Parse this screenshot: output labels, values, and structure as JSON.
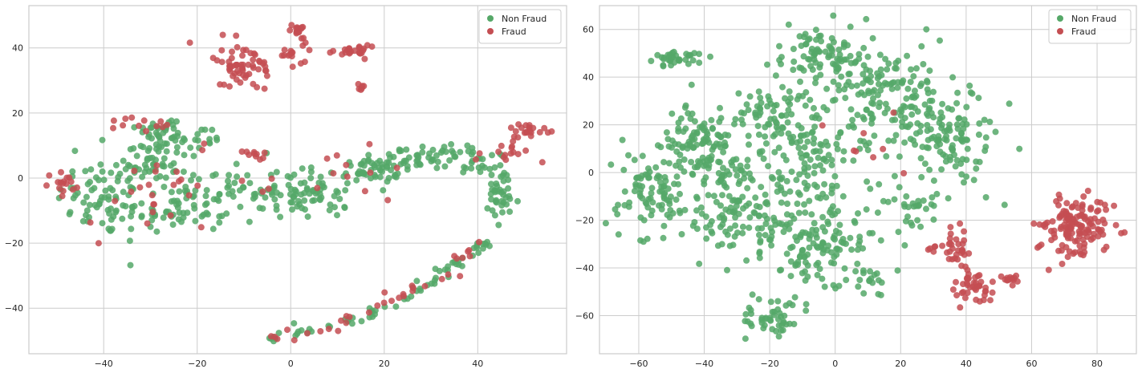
{
  "chart_data": [
    {
      "type": "scatter",
      "xlim": [
        -56,
        59
      ],
      "ylim": [
        -54,
        53
      ],
      "xticks": [
        -40,
        -20,
        0,
        20,
        40
      ],
      "yticks": [
        -40,
        -20,
        0,
        20,
        40
      ],
      "xtick_labels": [
        "−40",
        "−20",
        "0",
        "20",
        "40"
      ],
      "ytick_labels": [
        "−40",
        "−20",
        "0",
        "20",
        "40"
      ],
      "grid": true,
      "legend": "top-right",
      "series": [
        {
          "name": "Non Fraud",
          "color": "#55a868",
          "clusters": [
            {
              "cx": -40,
              "cy": -6,
              "sx": 5,
              "sy": 6,
              "n": 70
            },
            {
              "cx": -30,
              "cy": 6,
              "sx": 4,
              "sy": 5,
              "n": 60
            },
            {
              "cx": -27,
              "cy": 15,
              "sx": 3,
              "sy": 2,
              "n": 25
            },
            {
              "cx": -20,
              "cy": 12,
              "sx": 3,
              "sy": 2,
              "n": 18
            },
            {
              "cx": -25,
              "cy": -10,
              "sx": 6,
              "sy": 4,
              "n": 60
            },
            {
              "cx": -12,
              "cy": -4,
              "sx": 5,
              "sy": 5,
              "n": 50
            },
            {
              "cx": 0,
              "cy": -5,
              "sx": 3,
              "sy": 3,
              "n": 30
            },
            {
              "cx": 7,
              "cy": -4,
              "sx": 3,
              "sy": 4,
              "n": 40
            },
            {
              "cx": 17,
              "cy": 2,
              "sx": 3,
              "sy": 2,
              "n": 40
            },
            {
              "cx": 27,
              "cy": 6,
              "sx": 5,
              "sy": 2,
              "n": 50
            },
            {
              "cx": 40,
              "cy": 5,
              "sx": 3,
              "sy": 2,
              "n": 25
            },
            {
              "cx": 45,
              "cy": -6,
              "sx": 2,
              "sy": 5,
              "n": 40
            }
          ],
          "arc": {
            "points": [
              [
                -5,
                -49
              ],
              [
                8,
                -46
              ],
              [
                20,
                -40
              ],
              [
                30,
                -32
              ],
              [
                38,
                -24
              ],
              [
                42,
                -20
              ]
            ],
            "n": 70,
            "spread": 0.9
          }
        },
        {
          "name": "Fraud",
          "color": "#c44e52",
          "clusters": [
            {
              "cx": -10,
              "cy": 35,
              "sx": 3,
              "sy": 3,
              "n": 60
            },
            {
              "cx": 0,
              "cy": 38,
              "sx": 2,
              "sy": 2,
              "n": 15
            },
            {
              "cx": 1,
              "cy": 45,
              "sx": 1,
              "sy": 1,
              "n": 14
            },
            {
              "cx": 13,
              "cy": 39,
              "sx": 3,
              "sy": 1,
              "n": 24
            },
            {
              "cx": 15,
              "cy": 28,
              "sx": 0.6,
              "sy": 0.8,
              "n": 6
            },
            {
              "cx": -8,
              "cy": 7,
              "sx": 1.5,
              "sy": 1.5,
              "n": 10
            },
            {
              "cx": -33,
              "cy": 17,
              "sx": 3,
              "sy": 2,
              "n": 12
            },
            {
              "cx": -48,
              "cy": -2,
              "sx": 2,
              "sy": 2,
              "n": 16
            },
            {
              "cx": 51,
              "cy": 15,
              "sx": 2,
              "sy": 1,
              "n": 20
            },
            {
              "cx": 47,
              "cy": 8,
              "sx": 3,
              "sy": 2,
              "n": 16
            },
            {
              "cx": -30,
              "cy": -5,
              "sx": 8,
              "sy": 7,
              "n": 25
            },
            {
              "cx": 5,
              "cy": 0,
              "sx": 10,
              "sy": 6,
              "n": 14
            }
          ],
          "arc": {
            "points": [
              [
                -3,
                -49
              ],
              [
                8,
                -46
              ],
              [
                20,
                -38
              ],
              [
                32,
                -30
              ],
              [
                40,
                -20
              ]
            ],
            "n": 35,
            "spread": 1.1
          }
        }
      ]
    },
    {
      "type": "scatter",
      "xlim": [
        -72,
        92
      ],
      "ylim": [
        -76,
        70
      ],
      "xticks": [
        -60,
        -40,
        -20,
        0,
        20,
        40,
        60,
        80
      ],
      "yticks": [
        -60,
        -40,
        -20,
        0,
        20,
        40,
        60
      ],
      "xtick_labels": [
        "−60",
        "−40",
        "−20",
        "0",
        "20",
        "40",
        "60",
        "80"
      ],
      "ytick_labels": [
        "−60",
        "−40",
        "−20",
        "0",
        "20",
        "40",
        "60"
      ],
      "grid": true,
      "legend": "top-right",
      "series": [
        {
          "name": "Non Fraud",
          "color": "#55a868",
          "clusters": [
            {
              "cx": -48,
              "cy": 48,
              "sx": 4,
              "sy": 2,
              "n": 35
            },
            {
              "cx": -55,
              "cy": -8,
              "sx": 7,
              "sy": 10,
              "n": 100
            },
            {
              "cx": -40,
              "cy": 12,
              "sx": 6,
              "sy": 8,
              "n": 110
            },
            {
              "cx": -30,
              "cy": -15,
              "sx": 8,
              "sy": 12,
              "n": 120
            },
            {
              "cx": -18,
              "cy": 25,
              "sx": 6,
              "sy": 6,
              "n": 60
            },
            {
              "cx": -5,
              "cy": 50,
              "sx": 8,
              "sy": 6,
              "n": 90
            },
            {
              "cx": 15,
              "cy": 30,
              "sx": 10,
              "sy": 10,
              "n": 150
            },
            {
              "cx": 35,
              "cy": 15,
              "sx": 8,
              "sy": 12,
              "n": 110
            },
            {
              "cx": -10,
              "cy": 5,
              "sx": 8,
              "sy": 10,
              "n": 110
            },
            {
              "cx": -5,
              "cy": -30,
              "sx": 10,
              "sy": 10,
              "n": 140
            },
            {
              "cx": -20,
              "cy": -62,
              "sx": 4,
              "sy": 4,
              "n": 45
            },
            {
              "cx": 12,
              "cy": -45,
              "sx": 3,
              "sy": 3,
              "n": 15
            },
            {
              "cx": 25,
              "cy": -15,
              "sx": 4,
              "sy": 5,
              "n": 25
            }
          ]
        },
        {
          "name": "Fraud",
          "color": "#c44e52",
          "clusters": [
            {
              "cx": 73,
              "cy": -22,
              "sx": 6,
              "sy": 6,
              "n": 140
            },
            {
              "cx": 37,
              "cy": -32,
              "sx": 2,
              "sy": 4,
              "n": 30
            },
            {
              "cx": 42,
              "cy": -48,
              "sx": 3,
              "sy": 4,
              "n": 40
            },
            {
              "cx": 54,
              "cy": -45,
              "sx": 1.5,
              "sy": 2,
              "n": 14
            },
            {
              "cx": 30,
              "cy": -32,
              "sx": 1,
              "sy": 1,
              "n": 5
            },
            {
              "cx": 10,
              "cy": 12,
              "sx": 8,
              "sy": 8,
              "n": 8
            }
          ]
        }
      ]
    }
  ]
}
